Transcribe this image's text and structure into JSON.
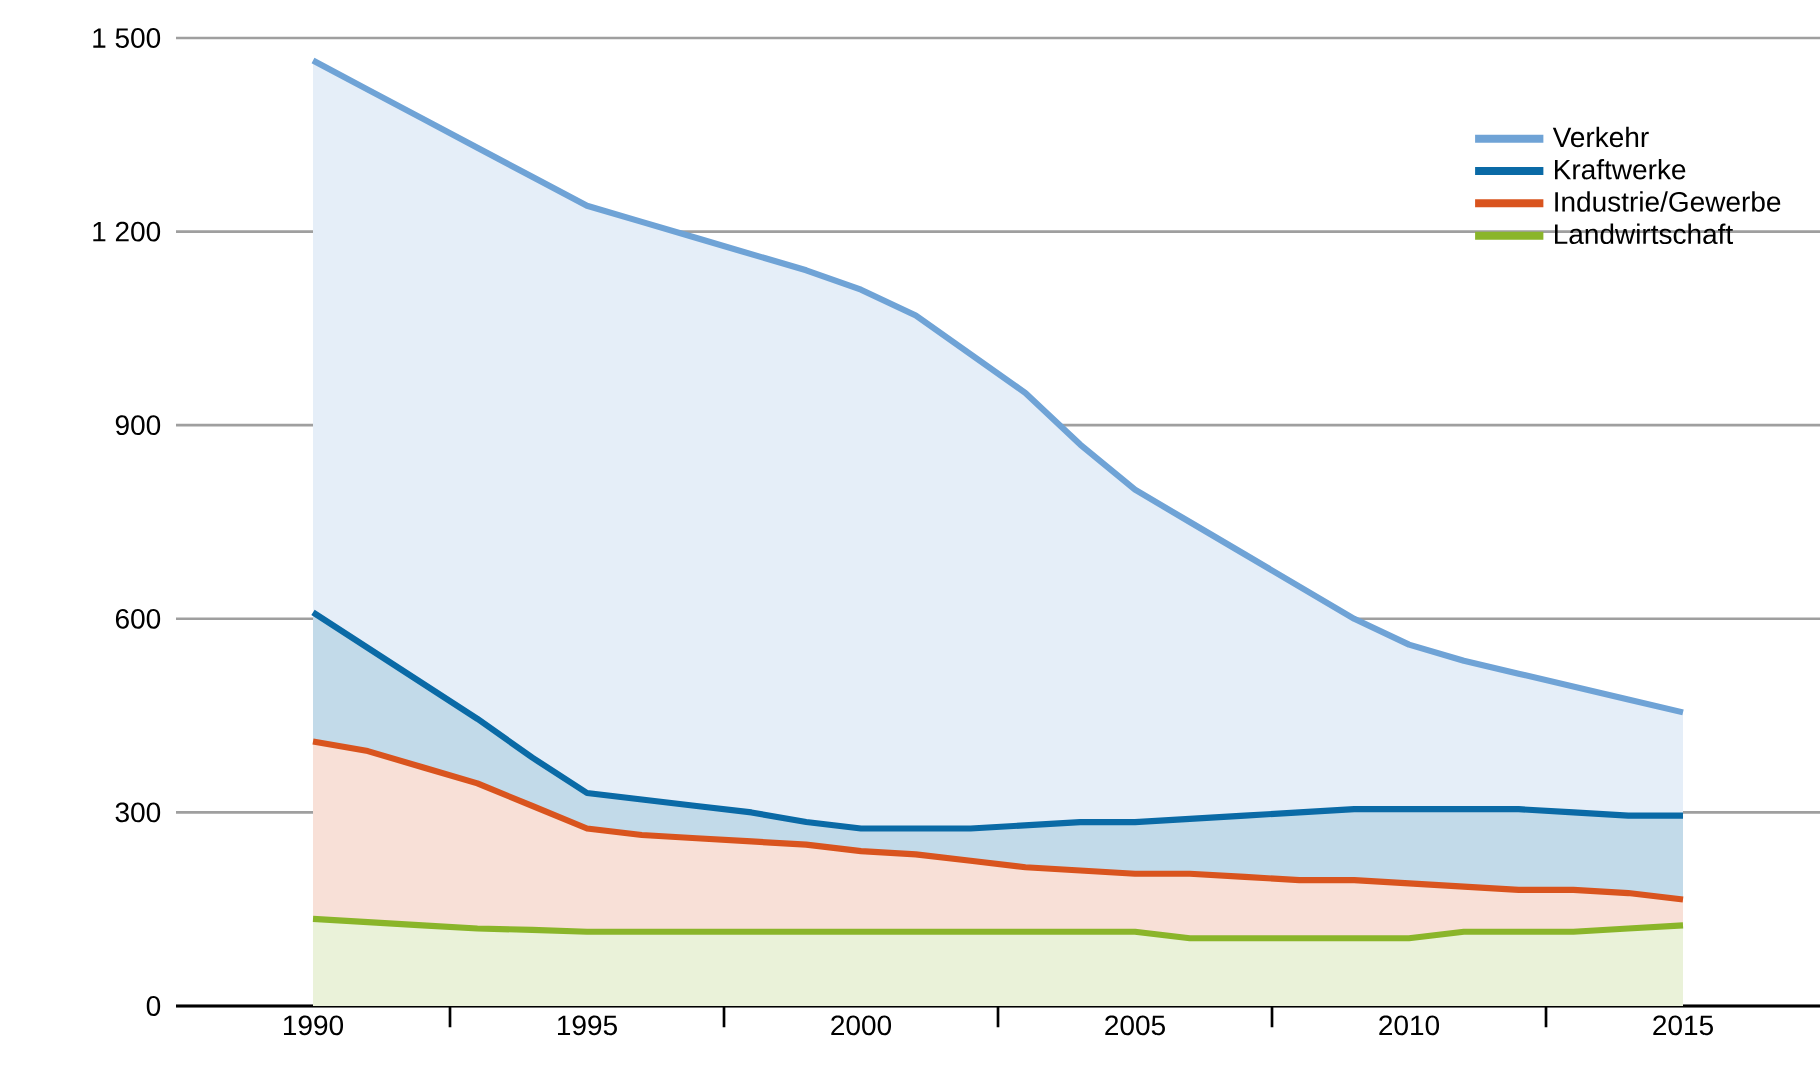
{
  "chart_data": {
    "type": "area",
    "x": [
      1990,
      1991,
      1992,
      1993,
      1994,
      1995,
      1996,
      1997,
      1998,
      1999,
      2000,
      2001,
      2002,
      2003,
      2004,
      2005,
      2006,
      2007,
      2008,
      2009,
      2010,
      2011,
      2012,
      2013,
      2014,
      2015
    ],
    "series": [
      {
        "name": "Verkehr",
        "color": "#6fa3d6",
        "values": [
          1465,
          1420,
          1375,
          1330,
          1285,
          1240,
          1215,
          1190,
          1165,
          1140,
          1110,
          1070,
          1010,
          950,
          870,
          800,
          750,
          700,
          650,
          600,
          560,
          535,
          515,
          495,
          475,
          455
        ]
      },
      {
        "name": "Kraftwerke",
        "color": "#0a6aa6",
        "values": [
          610,
          555,
          500,
          445,
          385,
          330,
          320,
          310,
          300,
          285,
          275,
          275,
          275,
          280,
          285,
          285,
          290,
          295,
          300,
          305,
          305,
          305,
          305,
          300,
          295,
          295
        ]
      },
      {
        "name": "Industrie/Gewerbe",
        "color": "#d9541e",
        "values": [
          410,
          395,
          370,
          345,
          310,
          275,
          265,
          260,
          255,
          250,
          240,
          235,
          225,
          215,
          210,
          205,
          205,
          200,
          195,
          195,
          190,
          185,
          180,
          180,
          175,
          165
        ]
      },
      {
        "name": "Landwirtschaft",
        "color": "#8ab52a",
        "values": [
          135,
          130,
          125,
          120,
          118,
          115,
          115,
          115,
          115,
          115,
          115,
          115,
          115,
          115,
          115,
          115,
          105,
          105,
          105,
          105,
          105,
          115,
          115,
          115,
          120,
          125
        ]
      }
    ],
    "xlim": [
      1987.5,
      2017.5
    ],
    "xticks": [
      {
        "value": 1990,
        "label": "1990"
      },
      {
        "value": 1995,
        "label": "1995"
      },
      {
        "value": 2000,
        "label": "2000"
      },
      {
        "value": 2005,
        "label": "2005"
      },
      {
        "value": 2010,
        "label": "2010"
      },
      {
        "value": 2015,
        "label": "2015"
      },
      {
        "value": 1992.5,
        "label": null
      },
      {
        "value": 1997.5,
        "label": null
      },
      {
        "value": 2002.5,
        "label": null
      },
      {
        "value": 2007.5,
        "label": null
      },
      {
        "value": 2012.5,
        "label": null
      }
    ],
    "ylim": [
      0,
      1500
    ],
    "yticks": [
      0,
      300,
      600,
      900,
      {
        "value": 1200,
        "label": "1 200"
      },
      {
        "value": 1500,
        "label": "1 500"
      }
    ],
    "grid": "y",
    "legend": "top right",
    "marker": "none",
    "line_style": "solid"
  }
}
